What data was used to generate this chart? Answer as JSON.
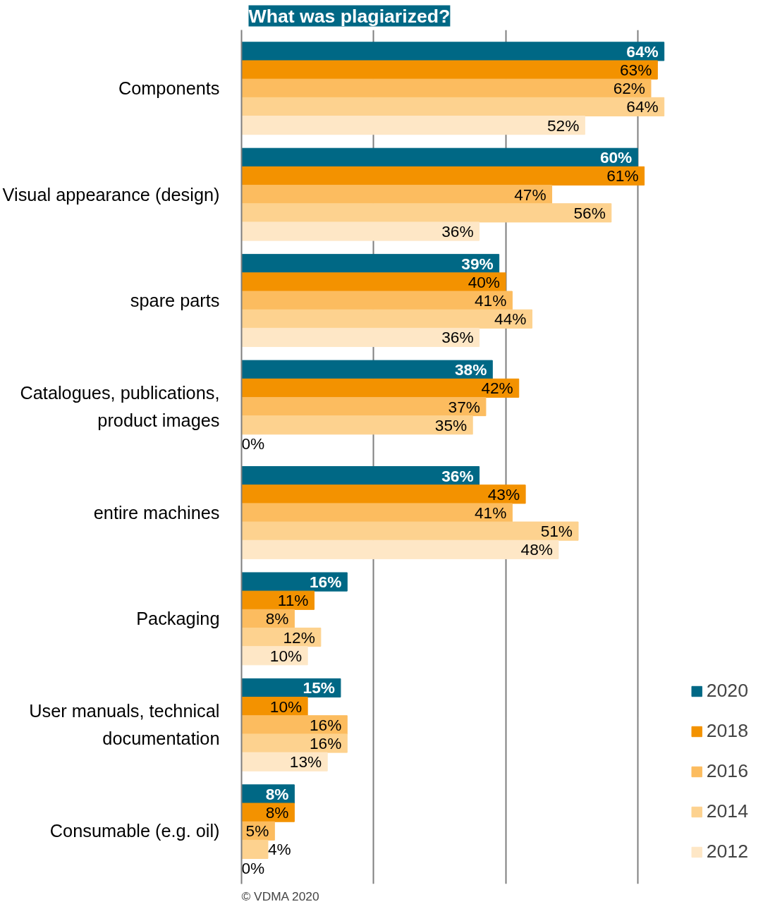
{
  "chart_data": {
    "type": "bar",
    "orientation": "horizontal",
    "title": "What was plagiarized?",
    "categories": [
      "Components",
      "Visual appearance (design)",
      "spare parts",
      "Catalogues, publications, product images",
      "entire machines",
      "Packaging",
      "User manuals, technical documentation",
      "Consumable (e.g. oil)"
    ],
    "series": [
      {
        "name": "2020",
        "color": "#006885",
        "values": [
          64,
          60,
          39,
          38,
          36,
          16,
          15,
          8
        ],
        "value_labels": [
          "64%",
          "60%",
          "39%",
          "38%",
          "36%",
          "16%",
          "15%",
          "8%"
        ]
      },
      {
        "name": "2018",
        "color": "#f39200",
        "values": [
          63,
          61,
          40,
          42,
          43,
          11,
          10,
          8
        ],
        "value_labels": [
          "63%",
          "61%",
          "40%",
          "42%",
          "43%",
          "11%",
          "10%",
          "8%"
        ]
      },
      {
        "name": "2016",
        "color": "#fcbc5f",
        "values": [
          62,
          47,
          41,
          37,
          41,
          8,
          16,
          5
        ],
        "value_labels": [
          "62%",
          "47%",
          "41%",
          "37%",
          "41%",
          "8%",
          "16%",
          "5%"
        ]
      },
      {
        "name": "2014",
        "color": "#fdd28f",
        "values": [
          64,
          56,
          44,
          35,
          51,
          12,
          16,
          4
        ],
        "value_labels": [
          "64%",
          "56%",
          "44%",
          "35%",
          "51%",
          "12%",
          "16%",
          "4%"
        ]
      },
      {
        "name": "2012",
        "color": "#fee7c6",
        "values": [
          52,
          36,
          36,
          0,
          48,
          10,
          13,
          0
        ],
        "value_labels": [
          "52%",
          "36%",
          "36%",
          "0%",
          "48%",
          "10%",
          "13%",
          "0%"
        ]
      }
    ],
    "grid": "x",
    "legend": "bottom right",
    "tick_labels": "y",
    "annotations": [
      "© VDMA 2020"
    ]
  }
}
